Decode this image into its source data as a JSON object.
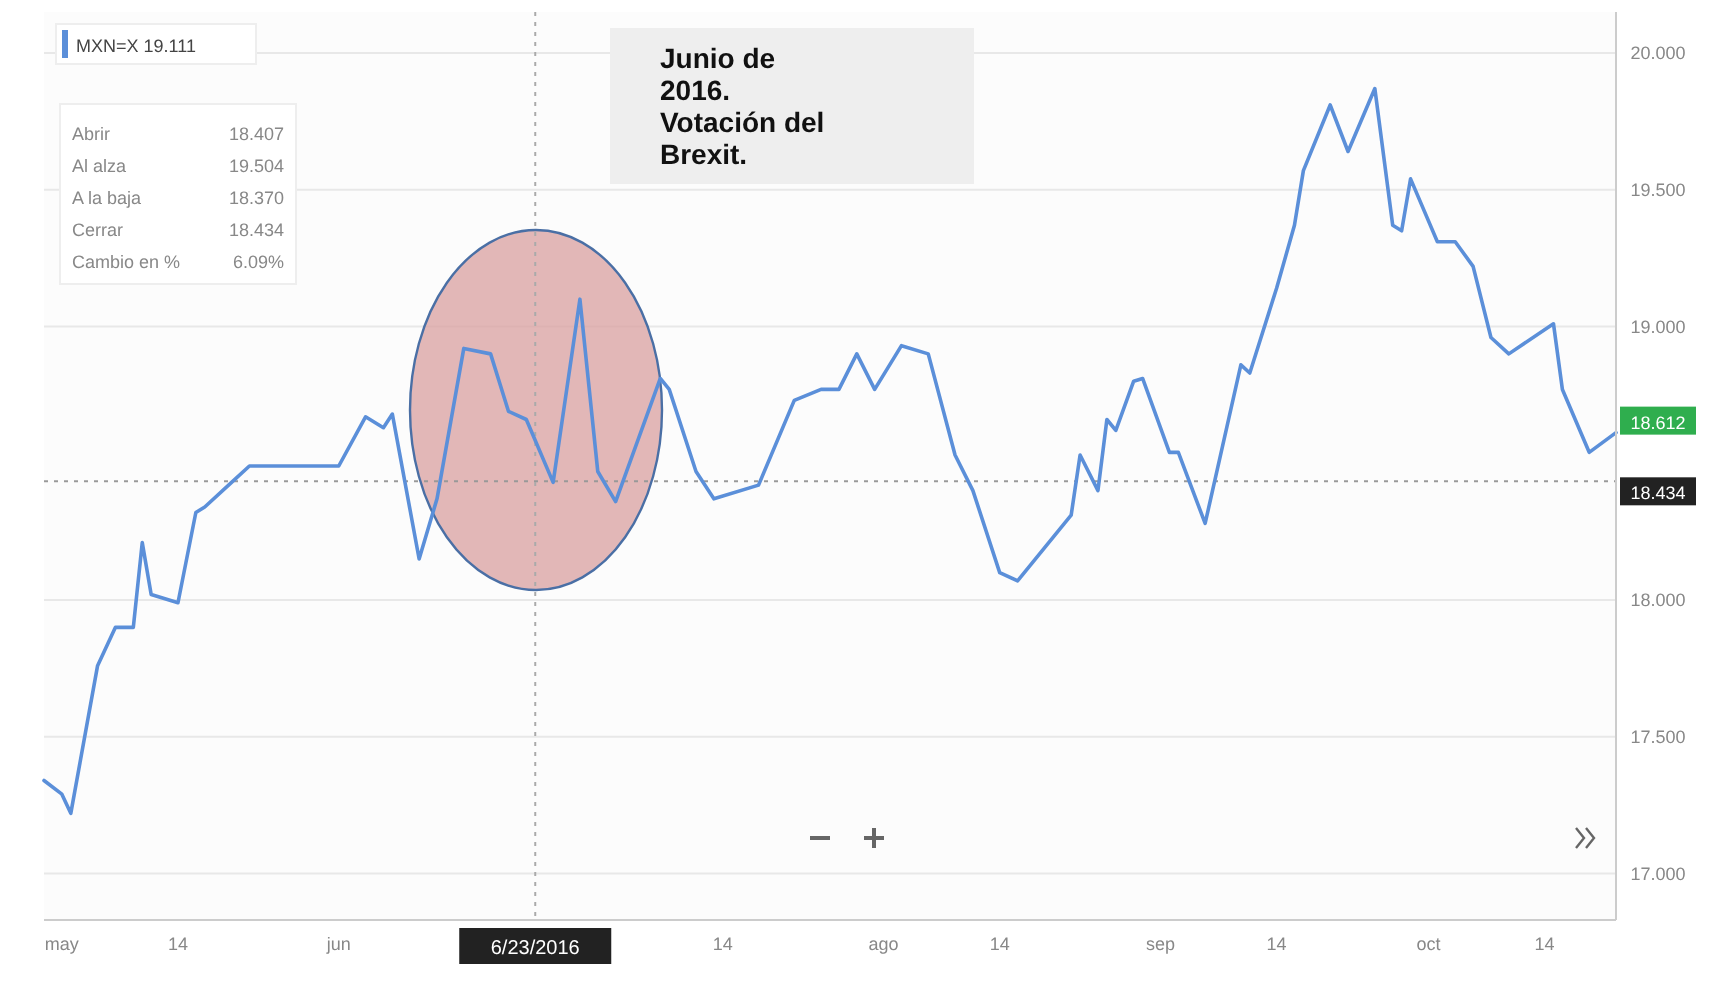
{
  "chart_data": {
    "type": "line",
    "title": "Junio de 2016. Votación del Brexit.",
    "xlim": [
      "2016-04-29",
      "2016-10-22"
    ],
    "xticks": [
      {
        "value": "2016-05-01",
        "label": "may"
      },
      {
        "value": "2016-05-14",
        "label": "14"
      },
      {
        "value": "2016-06-01",
        "label": "jun"
      },
      {
        "value": "2016-07-14",
        "label": "14"
      },
      {
        "value": "2016-08-01",
        "label": "ago"
      },
      {
        "value": "2016-08-14",
        "label": "14"
      },
      {
        "value": "2016-09-01",
        "label": "sep"
      },
      {
        "value": "2016-09-14",
        "label": "14"
      },
      {
        "value": "2016-10-01",
        "label": "oct"
      },
      {
        "value": "2016-10-14",
        "label": "14"
      }
    ],
    "ylim": [
      16.83,
      20.15
    ],
    "yticks": [
      {
        "value": 17,
        "label": "17.000"
      },
      {
        "value": 17.5,
        "label": "17.500"
      },
      {
        "value": 18,
        "label": "18.000"
      },
      {
        "value": 19,
        "label": "19.000"
      },
      {
        "value": 19.5,
        "label": "19.500"
      },
      {
        "value": 20,
        "label": "20.000"
      }
    ],
    "grid": "y",
    "legend": "top left",
    "marker": "none",
    "line_style": "solid",
    "series": [
      {
        "name": "MXN=X 19.111",
        "color": "#5b8fd9",
        "x": [
          "2016-04-29",
          "2016-05-01",
          "2016-05-02",
          "2016-05-05",
          "2016-05-07",
          "2016-05-09",
          "2016-05-10",
          "2016-05-11",
          "2016-05-14",
          "2016-05-16",
          "2016-05-17",
          "2016-05-20",
          "2016-05-22",
          "2016-05-24",
          "2016-05-27",
          "2016-06-01",
          "2016-06-04",
          "2016-06-06",
          "2016-06-07",
          "2016-06-10",
          "2016-06-12",
          "2016-06-15",
          "2016-06-18",
          "2016-06-20",
          "2016-06-22",
          "2016-06-25",
          "2016-06-28",
          "2016-06-30",
          "2016-07-02",
          "2016-07-07",
          "2016-07-08",
          "2016-07-11",
          "2016-07-13",
          "2016-07-18",
          "2016-07-22",
          "2016-07-25",
          "2016-07-27",
          "2016-07-29",
          "2016-07-31",
          "2016-08-03",
          "2016-08-06",
          "2016-08-09",
          "2016-08-11",
          "2016-08-14",
          "2016-08-16",
          "2016-08-22",
          "2016-08-23",
          "2016-08-25",
          "2016-08-26",
          "2016-08-27",
          "2016-08-29",
          "2016-08-30",
          "2016-09-02",
          "2016-09-03",
          "2016-09-06",
          "2016-09-10",
          "2016-09-11",
          "2016-09-14",
          "2016-09-16",
          "2016-09-17",
          "2016-09-20",
          "2016-09-22",
          "2016-09-25",
          "2016-09-27",
          "2016-09-28",
          "2016-09-29",
          "2016-10-02",
          "2016-10-04",
          "2016-10-06",
          "2016-10-08",
          "2016-10-10",
          "2016-10-15",
          "2016-10-16",
          "2016-10-19",
          "2016-10-22"
        ],
        "values": [
          17.34,
          17.29,
          17.22,
          17.76,
          17.9,
          17.9,
          18.21,
          18.02,
          17.99,
          18.32,
          18.34,
          18.43,
          18.49,
          18.49,
          18.49,
          18.49,
          18.67,
          18.63,
          18.68,
          18.15,
          18.37,
          18.92,
          18.9,
          18.69,
          18.66,
          18.43,
          19.1,
          18.47,
          18.36,
          18.81,
          18.77,
          18.47,
          18.37,
          18.42,
          18.73,
          18.77,
          18.77,
          18.9,
          18.77,
          18.93,
          18.9,
          18.53,
          18.4,
          18.1,
          18.07,
          18.31,
          18.53,
          18.4,
          18.66,
          18.62,
          18.8,
          18.81,
          18.54,
          18.54,
          18.28,
          18.86,
          18.83,
          19.14,
          19.37,
          19.57,
          19.81,
          19.64,
          19.87,
          19.37,
          19.35,
          19.54,
          19.31,
          19.31,
          19.22,
          18.96,
          18.9,
          19.01,
          18.77,
          18.54,
          18.612
        ]
      }
    ],
    "ref_lines": [
      {
        "axis": "y",
        "value": 18.434,
        "label": "18.434",
        "color": "#999999",
        "line_style": "dotted"
      },
      {
        "axis": "x",
        "value": "2016-06-23",
        "label": "6/23/2016",
        "color": "#aaaaaa",
        "line_style": "dotted"
      }
    ],
    "annotations": [
      "Abrir 18.407",
      "Al alza 19.504",
      "A la baja 18.370",
      "Cerrar 18.434",
      "Cambio en % 6.09%",
      {
        "text": "18.612",
        "x": "2016-10-22",
        "y": 18.612
      }
    ]
  }
}
